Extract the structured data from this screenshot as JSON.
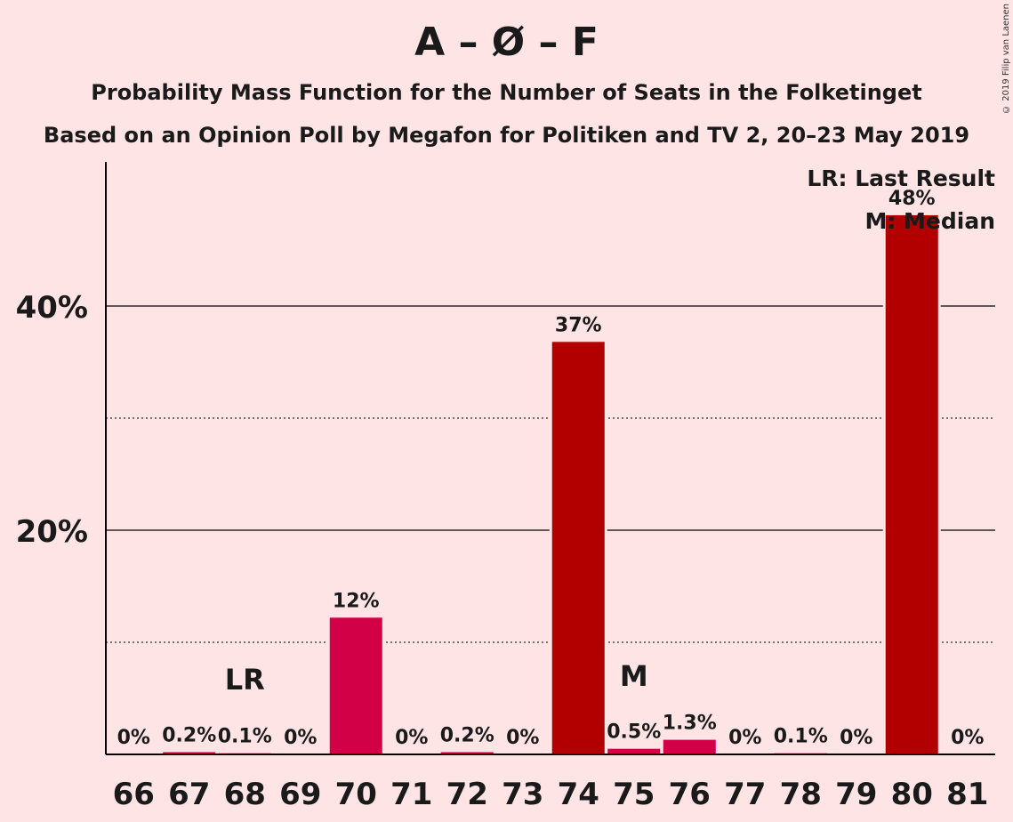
{
  "title": "A – Ø – F",
  "subtitle": "Probability Mass Function for the Number of Seats in the Folketinget",
  "subtitle2": "Based on an Opinion Poll by Megafon for Politiken and TV 2, 20–23 May 2019",
  "copyright": "© 2019 Filip van Laenen",
  "legend": {
    "lr": "LR: Last Result",
    "m": "M: Median"
  },
  "chart_data": {
    "type": "bar",
    "categories": [
      "66",
      "67",
      "68",
      "69",
      "70",
      "71",
      "72",
      "73",
      "74",
      "75",
      "76",
      "77",
      "78",
      "79",
      "80",
      "81"
    ],
    "values": [
      0,
      0.2,
      0.1,
      0,
      12.2,
      0,
      0.2,
      0,
      36.8,
      0.5,
      1.3,
      0,
      0.1,
      0,
      48.1,
      0
    ],
    "labels": [
      "0%",
      "0.2%",
      "0.1%",
      "0%",
      "12%",
      "0%",
      "0.2%",
      "0%",
      "37%",
      "0.5%",
      "1.3%",
      "0%",
      "0.1%",
      "0%",
      "48%",
      "0%"
    ],
    "yticks": [
      20,
      40
    ],
    "ytick_labels": [
      "20%",
      "40%"
    ],
    "minor_gridlines": [
      10,
      30
    ],
    "ylim": [
      0,
      52
    ],
    "last_result": "68",
    "median": "75",
    "last_result_marker": "LR",
    "median_marker": "M",
    "colors": {
      "bar_small": "#D10047",
      "bar_large": "#B20000",
      "background": "#FFE4E6"
    },
    "legend_position": "top-right"
  }
}
